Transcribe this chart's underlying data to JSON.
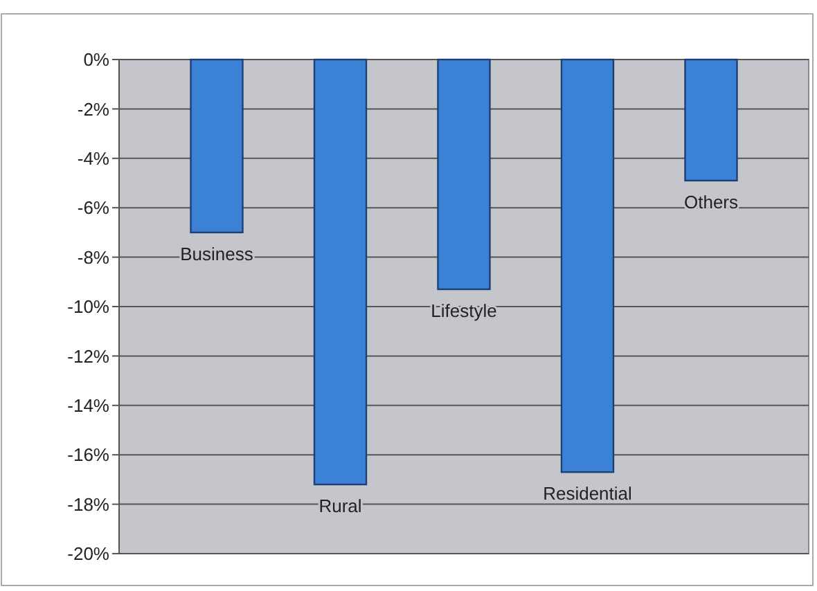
{
  "chart_data": {
    "type": "bar",
    "categories": [
      "Business",
      "Rural",
      "Lifestyle",
      "Residential",
      "Others"
    ],
    "values": [
      -7,
      -17.2,
      -9.3,
      -16.7,
      -4.9
    ],
    "color": "#3b82d6",
    "ylim": [
      -20,
      0
    ],
    "yticks": [
      {
        "value": 0,
        "label": "0%"
      },
      {
        "value": -2,
        "label": "-2%"
      },
      {
        "value": -4,
        "label": "-4%"
      },
      {
        "value": -6,
        "label": "-6%"
      },
      {
        "value": -8,
        "label": "-8%"
      },
      {
        "value": -10,
        "label": "-10%"
      },
      {
        "value": -12,
        "label": "-12%"
      },
      {
        "value": -14,
        "label": "-14%"
      },
      {
        "value": -16,
        "label": "-16%"
      },
      {
        "value": -18,
        "label": "-18%"
      },
      {
        "value": -20,
        "label": "-20%"
      }
    ],
    "grid": "y"
  }
}
